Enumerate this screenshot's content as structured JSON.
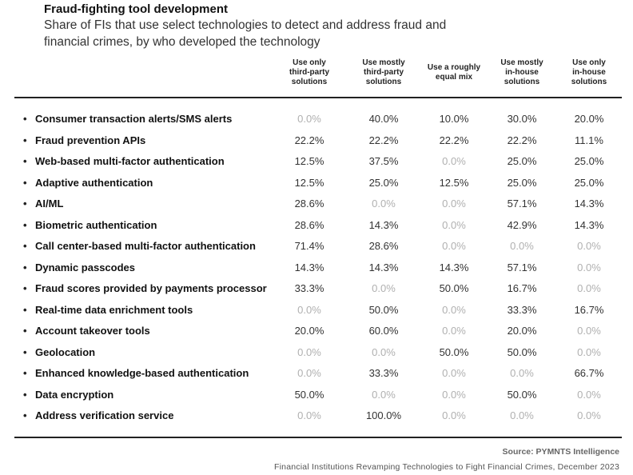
{
  "chart_data": {
    "type": "table",
    "title": "Fraud-fighting tool development",
    "subtitle": "Share of FIs that use select technologies to detect and address fraud and financial crimes, by who developed the technology",
    "columns": [
      [
        "Use only",
        "third-party",
        "solutions"
      ],
      [
        "Use mostly",
        "third-party",
        "solutions"
      ],
      [
        "Use a roughly",
        "equal mix"
      ],
      [
        "Use mostly",
        "in-house",
        "solutions"
      ],
      [
        "Use only",
        "in-house",
        "solutions"
      ]
    ],
    "rows": [
      {
        "label": "Consumer transaction alerts/SMS alerts",
        "values": [
          "0.0%",
          "40.0%",
          "10.0%",
          "30.0%",
          "20.0%"
        ]
      },
      {
        "label": "Fraud prevention APIs",
        "values": [
          "22.2%",
          "22.2%",
          "22.2%",
          "22.2%",
          "11.1%"
        ]
      },
      {
        "label": "Web-based multi-factor authentication",
        "values": [
          "12.5%",
          "37.5%",
          "0.0%",
          "25.0%",
          "25.0%"
        ]
      },
      {
        "label": "Adaptive authentication",
        "values": [
          "12.5%",
          "25.0%",
          "12.5%",
          "25.0%",
          "25.0%"
        ]
      },
      {
        "label": "AI/ML",
        "values": [
          "28.6%",
          "0.0%",
          "0.0%",
          "57.1%",
          "14.3%"
        ]
      },
      {
        "label": "Biometric authentication",
        "values": [
          "28.6%",
          "14.3%",
          "0.0%",
          "42.9%",
          "14.3%"
        ]
      },
      {
        "label": "Call center-based multi-factor authentication",
        "values": [
          "71.4%",
          "28.6%",
          "0.0%",
          "0.0%",
          "0.0%"
        ]
      },
      {
        "label": "Dynamic passcodes",
        "values": [
          "14.3%",
          "14.3%",
          "14.3%",
          "57.1%",
          "0.0%"
        ]
      },
      {
        "label": "Fraud scores provided by payments processor",
        "values": [
          "33.3%",
          "0.0%",
          "50.0%",
          "16.7%",
          "0.0%"
        ]
      },
      {
        "label": "Real-time data enrichment tools",
        "values": [
          "0.0%",
          "50.0%",
          "0.0%",
          "33.3%",
          "16.7%"
        ]
      },
      {
        "label": "Account takeover tools",
        "values": [
          "20.0%",
          "60.0%",
          "0.0%",
          "20.0%",
          "0.0%"
        ]
      },
      {
        "label": "Geolocation",
        "values": [
          "0.0%",
          "0.0%",
          "50.0%",
          "50.0%",
          "0.0%"
        ]
      },
      {
        "label": "Enhanced knowledge-based authentication",
        "values": [
          "0.0%",
          "33.3%",
          "0.0%",
          "0.0%",
          "66.7%"
        ]
      },
      {
        "label": "Data encryption",
        "values": [
          "50.0%",
          "0.0%",
          "0.0%",
          "50.0%",
          "0.0%"
        ]
      },
      {
        "label": "Address verification service",
        "values": [
          "0.0%",
          "100.0%",
          "0.0%",
          "0.0%",
          "0.0%"
        ]
      }
    ],
    "bullet": "•",
    "source": "Source: PYMNTS Intelligence",
    "citation": "Financial Institutions Revamping Technologies to Fight Financial Crimes, December 2023",
    "colors": {
      "value": "#333333",
      "zero_value": "#b0b0b0",
      "rule": "#222222"
    }
  }
}
